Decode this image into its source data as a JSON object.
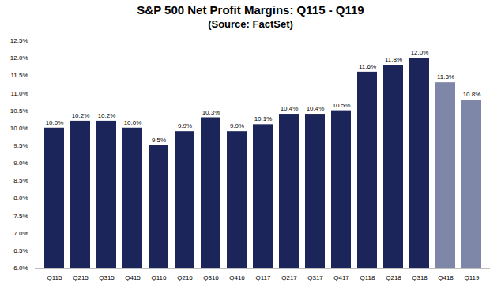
{
  "chart_data": {
    "type": "bar",
    "title": "S&P 500 Net Profit Margins: Q115 - Q119",
    "subtitle": "(Source: FactSet)",
    "categories": [
      "Q115",
      "Q215",
      "Q315",
      "Q415",
      "Q116",
      "Q216",
      "Q316",
      "Q416",
      "Q117",
      "Q217",
      "Q317",
      "Q417",
      "Q118",
      "Q218",
      "Q318",
      "Q418",
      "Q119"
    ],
    "values": [
      10.0,
      10.2,
      10.2,
      10.0,
      9.5,
      9.9,
      10.3,
      9.9,
      10.1,
      10.4,
      10.4,
      10.5,
      11.6,
      11.8,
      12.0,
      11.3,
      10.8
    ],
    "value_labels": [
      "10.0%",
      "10.2%",
      "10.2%",
      "10.0%",
      "9.5%",
      "9.9%",
      "10.3%",
      "9.9%",
      "10.1%",
      "10.4%",
      "10.4%",
      "10.5%",
      "11.6%",
      "11.8%",
      "12.0%",
      "11.3%",
      "10.8%"
    ],
    "colors": [
      "#1b2559",
      "#1b2559",
      "#1b2559",
      "#1b2559",
      "#1b2559",
      "#1b2559",
      "#1b2559",
      "#1b2559",
      "#1b2559",
      "#1b2559",
      "#1b2559",
      "#1b2559",
      "#1b2559",
      "#1b2559",
      "#1b2559",
      "#7f87a8",
      "#7f87a8"
    ],
    "ylim": [
      6.0,
      12.5
    ],
    "yticks": [
      {
        "value": 6.0,
        "label": "6.0%"
      },
      {
        "value": 6.5,
        "label": "6.5%"
      },
      {
        "value": 7.0,
        "label": "7.0%"
      },
      {
        "value": 7.5,
        "label": "7.5%"
      },
      {
        "value": 8.0,
        "label": "8.0%"
      },
      {
        "value": 8.5,
        "label": "8.5%"
      },
      {
        "value": 9.0,
        "label": "9.0%"
      },
      {
        "value": 9.5,
        "label": "9.5%"
      },
      {
        "value": 10.0,
        "label": "10.0%"
      },
      {
        "value": 10.5,
        "label": "10.5%"
      },
      {
        "value": 11.0,
        "label": "11.0%"
      },
      {
        "value": 11.5,
        "label": "11.5%"
      },
      {
        "value": 12.0,
        "label": "12.0%"
      },
      {
        "value": 12.5,
        "label": "12.5%"
      }
    ],
    "grid": false,
    "data_labels": true
  }
}
